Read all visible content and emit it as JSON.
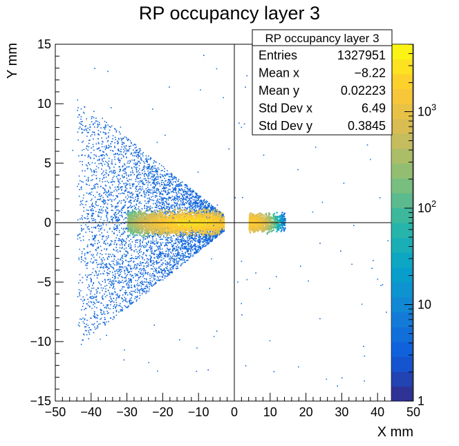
{
  "chart_data": {
    "type": "heatmap",
    "title": "RP occupancy layer 3",
    "xlabel": "X mm",
    "ylabel": "Y mm",
    "xlim": [
      -50,
      50
    ],
    "ylim": [
      -15,
      15
    ],
    "x_ticks": [
      -50,
      -40,
      -30,
      -20,
      -10,
      0,
      10,
      20,
      30,
      40,
      50
    ],
    "y_ticks": [
      -15,
      -10,
      -5,
      0,
      5,
      10,
      15
    ],
    "zscale": "log",
    "zlim": [
      1,
      5000
    ],
    "z_ticks": [
      {
        "value": 1,
        "label": "1"
      },
      {
        "value": 10,
        "label": "10"
      },
      {
        "value": 100,
        "label": "10",
        "sup": "2"
      },
      {
        "value": 1000,
        "label": "10",
        "sup": "3"
      }
    ],
    "palette": [
      "#352a87",
      "#0f5cdd",
      "#1481d6",
      "#06a4ca",
      "#2eb7a4",
      "#87bf77",
      "#d1bb59",
      "#fec832",
      "#f9fb0e"
    ],
    "reference_lines": {
      "x": 0,
      "y": 0
    },
    "regions": [
      {
        "name": "left-wedge",
        "x_range": [
          -44,
          -3
        ],
        "y_at_left": 10.5,
        "y_at_right": 0.7,
        "peak_x": -12,
        "peak_count": 3000
      },
      {
        "name": "right-cluster",
        "x_range": [
          4,
          14
        ],
        "y_halfwidth": 0.9,
        "peak_x": 5,
        "peak_count": 2000
      }
    ],
    "stats_box": {
      "title": "RP occupancy layer 3",
      "rows": [
        {
          "label": "Entries",
          "value": "1327951"
        },
        {
          "label": "Mean x",
          "value": "−8.22"
        },
        {
          "label": "Mean y",
          "value": "0.02223"
        },
        {
          "label": "Std Dev x",
          "value": "6.49"
        },
        {
          "label": "Std Dev y",
          "value": "0.3845"
        }
      ]
    }
  }
}
